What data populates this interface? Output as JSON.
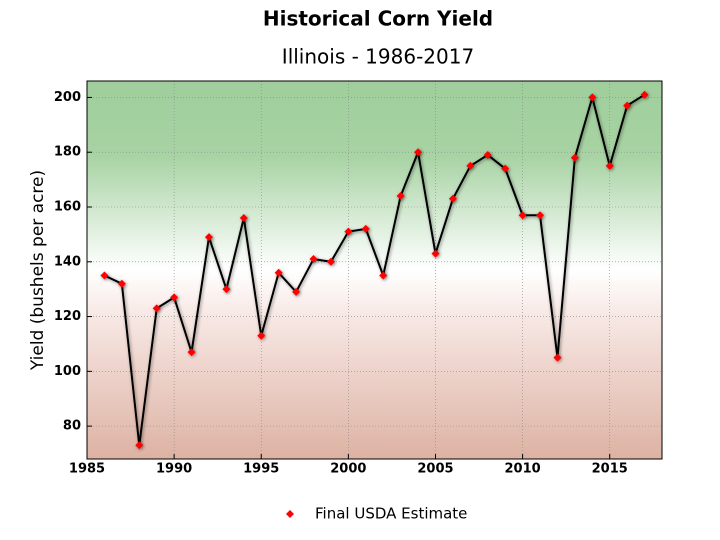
{
  "chart_data": {
    "type": "line",
    "title": "Historical Corn Yield",
    "subtitle": "Illinois  -  1986-2017",
    "y_label": "Yield (bushels per acre)",
    "x": [
      1986,
      1987,
      1988,
      1989,
      1990,
      1991,
      1992,
      1993,
      1994,
      1995,
      1996,
      1997,
      1998,
      1999,
      2000,
      2001,
      2002,
      2003,
      2004,
      2005,
      2006,
      2007,
      2008,
      2009,
      2010,
      2011,
      2012,
      2013,
      2014,
      2015,
      2016,
      2017
    ],
    "series": [
      {
        "name": "Final USDA Estimate",
        "color": "#000000",
        "marker_color": "#ff0000",
        "values": [
          135,
          132,
          73,
          123,
          127,
          107,
          149,
          130,
          156,
          113,
          136,
          129,
          141,
          140,
          151,
          152,
          135,
          164,
          180,
          143,
          163,
          175,
          179,
          174,
          157,
          157,
          105,
          178,
          200,
          175,
          197,
          201
        ]
      }
    ],
    "xlim": [
      1985,
      2018
    ],
    "xticks": [
      1985,
      1990,
      1995,
      2000,
      2005,
      2010,
      2015
    ],
    "ylim": [
      68,
      206
    ],
    "yticks": [
      80,
      100,
      120,
      140,
      160,
      180,
      200
    ],
    "grid": true,
    "legend": "bottom"
  }
}
